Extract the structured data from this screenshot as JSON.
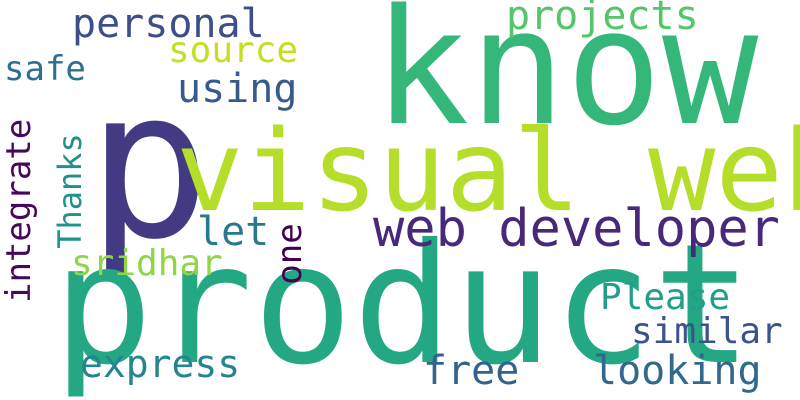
{
  "word_cloud": {
    "words": [
      {
        "text": "p",
        "color": "#433a84"
      },
      {
        "text": "know",
        "color": "#35b779"
      },
      {
        "text": "visual web",
        "color": "#b5de2b"
      },
      {
        "text": "product",
        "color": "#23a883"
      },
      {
        "text": "web developer",
        "color": "#482979"
      },
      {
        "text": "personal",
        "color": "#3d4e8a"
      },
      {
        "text": "projects",
        "color": "#54c568"
      },
      {
        "text": "source",
        "color": "#c2df23"
      },
      {
        "text": "safe",
        "color": "#2e6f8e"
      },
      {
        "text": "using",
        "color": "#375a8c"
      },
      {
        "text": "integrate",
        "color": "#46085c"
      },
      {
        "text": "Thanks",
        "color": "#21918c"
      },
      {
        "text": "let",
        "color": "#2a788e"
      },
      {
        "text": "one",
        "color": "#440154"
      },
      {
        "text": "sridhar",
        "color": "#8ed645"
      },
      {
        "text": "Please",
        "color": "#1f9e89"
      },
      {
        "text": "similar",
        "color": "#3b528b"
      },
      {
        "text": "express",
        "color": "#25858e"
      },
      {
        "text": "free",
        "color": "#33638d"
      },
      {
        "text": "looking",
        "color": "#31688e"
      }
    ]
  }
}
